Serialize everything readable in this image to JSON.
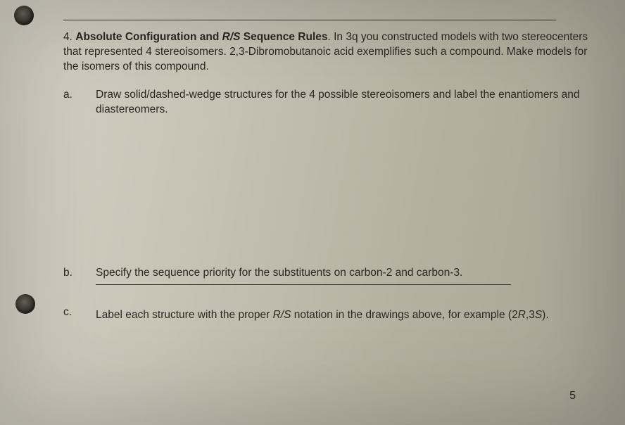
{
  "question": {
    "number": "4.",
    "title_bold": "Absolute Configuration and ",
    "title_italic": "R/S",
    "title_bold2": " Sequence Rules",
    "body": ".  In 3q you constructed models with two stereocenters that represented 4 stereoisomers.  2,3-Dibromobutanoic acid exemplifies such a compound.  Make models for the isomers of this compound."
  },
  "parts": {
    "a": {
      "letter": "a.",
      "text": "Draw solid/dashed-wedge structures for the 4 possible stereoisomers and label the enantiomers and diastereomers."
    },
    "b": {
      "letter": "b.",
      "text": "Specify the sequence priority for the substituents on carbon-2 and carbon-3."
    },
    "c": {
      "letter": "c.",
      "text_pre": "Label each structure with the proper ",
      "text_italic": "R/S",
      "text_mid": " notation in the drawings above, for example (2",
      "text_i2": "R",
      "text_comma": ",3",
      "text_i3": "S",
      "text_post": ")."
    }
  },
  "pagenum": "5"
}
